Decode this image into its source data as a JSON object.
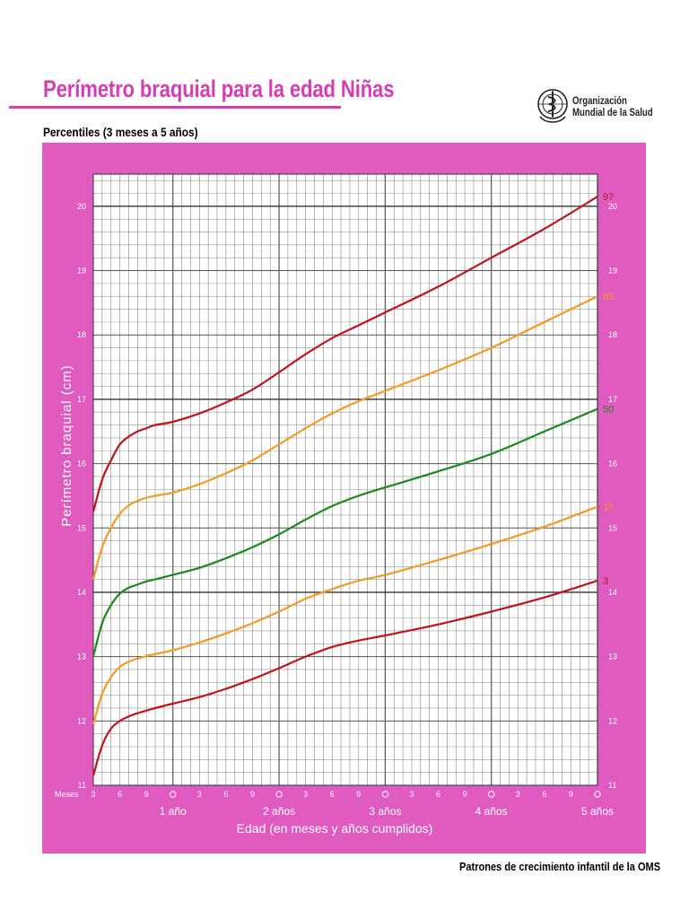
{
  "header": {
    "title": "Perímetro braquial para la edad  Niñas",
    "subtitle": "Percentiles (3 meses a 5 años)",
    "logo_line1": "Organización",
    "logo_line2": "Mundial de la Salud"
  },
  "footer": {
    "text": "Patrones de crecimiento infantil de la OMS"
  },
  "colors": {
    "brand": "#d63db4",
    "panel": "#e05bbf",
    "p97": "#c0141b",
    "p85": "#f39a25",
    "p50": "#1a8a1a",
    "p15": "#f39a25",
    "p3": "#c0141b"
  },
  "chart_data": {
    "type": "line",
    "ylabel": "Perímetro braquial (cm)",
    "xlabel": "Edad (en meses y años cumplidos)",
    "ylim": [
      11,
      20.5
    ],
    "xlim": [
      3,
      60
    ],
    "x_unit": "months",
    "grid": true,
    "months_label": "Meses",
    "y_ticks": [
      11,
      12,
      13,
      14,
      15,
      16,
      17,
      18,
      19,
      20
    ],
    "month_tick_labels": [
      "3",
      "6",
      "9",
      "3",
      "6",
      "9",
      "3",
      "6",
      "9",
      "3",
      "6",
      "9",
      "3",
      "6",
      "9"
    ],
    "year_labels": [
      "1 año",
      "2 años",
      "3 años",
      "4 años",
      "5 años"
    ],
    "series": [
      {
        "name": "97",
        "color": "#c0141b",
        "x": [
          3,
          4,
          5,
          6,
          7,
          8,
          9,
          10,
          12,
          15,
          18,
          21,
          24,
          27,
          30,
          33,
          36,
          42,
          48,
          54,
          60
        ],
        "values": [
          15.25,
          15.75,
          16.05,
          16.3,
          16.42,
          16.5,
          16.55,
          16.6,
          16.65,
          16.78,
          16.95,
          17.15,
          17.42,
          17.7,
          17.95,
          18.15,
          18.35,
          18.75,
          19.2,
          19.65,
          20.15
        ]
      },
      {
        "name": "85",
        "color": "#f39a25",
        "x": [
          3,
          4,
          5,
          6,
          7,
          8,
          9,
          10,
          12,
          15,
          18,
          21,
          24,
          27,
          30,
          33,
          36,
          42,
          48,
          54,
          60
        ],
        "values": [
          14.2,
          14.7,
          15.0,
          15.22,
          15.35,
          15.42,
          15.47,
          15.5,
          15.55,
          15.68,
          15.85,
          16.05,
          16.3,
          16.55,
          16.78,
          16.97,
          17.13,
          17.45,
          17.8,
          18.2,
          18.6
        ]
      },
      {
        "name": "50",
        "color": "#1a8a1a",
        "x": [
          3,
          4,
          5,
          6,
          7,
          8,
          9,
          10,
          12,
          15,
          18,
          21,
          24,
          27,
          30,
          33,
          36,
          42,
          48,
          54,
          60
        ],
        "values": [
          13.0,
          13.52,
          13.8,
          13.98,
          14.07,
          14.12,
          14.17,
          14.2,
          14.27,
          14.38,
          14.53,
          14.7,
          14.9,
          15.13,
          15.34,
          15.5,
          15.63,
          15.88,
          16.15,
          16.5,
          16.85
        ]
      },
      {
        "name": "15",
        "color": "#f39a25",
        "x": [
          3,
          4,
          5,
          6,
          7,
          8,
          9,
          10,
          12,
          15,
          18,
          21,
          24,
          27,
          30,
          33,
          36,
          42,
          48,
          54,
          60
        ],
        "values": [
          11.95,
          12.42,
          12.68,
          12.84,
          12.92,
          12.97,
          13.01,
          13.04,
          13.1,
          13.22,
          13.36,
          13.52,
          13.7,
          13.9,
          14.05,
          14.18,
          14.27,
          14.5,
          14.75,
          15.02,
          15.33
        ]
      },
      {
        "name": "3",
        "color": "#c0141b",
        "x": [
          3,
          4,
          5,
          6,
          7,
          8,
          9,
          10,
          12,
          15,
          18,
          21,
          24,
          27,
          30,
          33,
          36,
          42,
          48,
          54,
          60
        ],
        "values": [
          11.15,
          11.62,
          11.88,
          12.0,
          12.07,
          12.12,
          12.16,
          12.2,
          12.27,
          12.37,
          12.5,
          12.65,
          12.82,
          13.0,
          13.15,
          13.25,
          13.33,
          13.5,
          13.7,
          13.92,
          14.18
        ]
      }
    ]
  }
}
